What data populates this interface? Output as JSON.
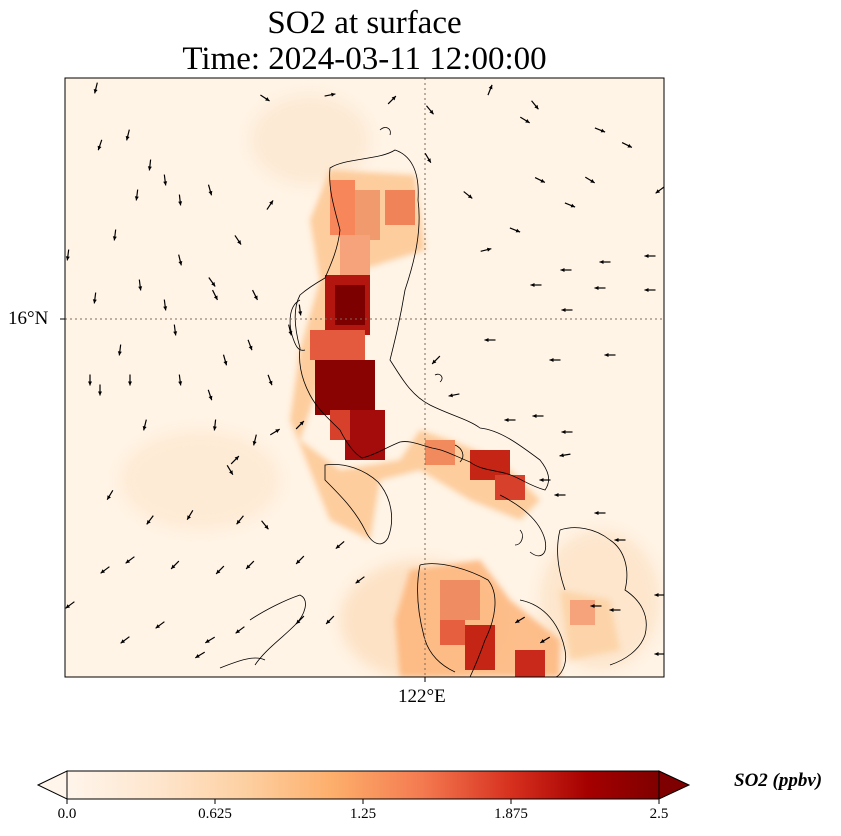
{
  "title": {
    "line1": "SO2 at surface",
    "line2": "Time: 2024-03-11 12:00:00"
  },
  "map": {
    "lat_tick_label": "16°N",
    "lon_tick_label": "122°E",
    "field": "SO2",
    "colormap": [
      "#fff5eb",
      "#fee6ce",
      "#fdd0a2",
      "#fdae6b",
      "#fd8d3c",
      "#f16913",
      "#d94801",
      "#a63603",
      "#7f0000"
    ]
  },
  "colorbar": {
    "label": "SO2 (ppbv)",
    "min": 0.0,
    "max": 2.5,
    "ticks": [
      {
        "value": 0.0,
        "label": "0.0"
      },
      {
        "value": 0.625,
        "label": "0.625"
      },
      {
        "value": 1.25,
        "label": "1.25"
      },
      {
        "value": 1.875,
        "label": "1.875"
      },
      {
        "value": 2.5,
        "label": "2.5"
      }
    ]
  }
}
